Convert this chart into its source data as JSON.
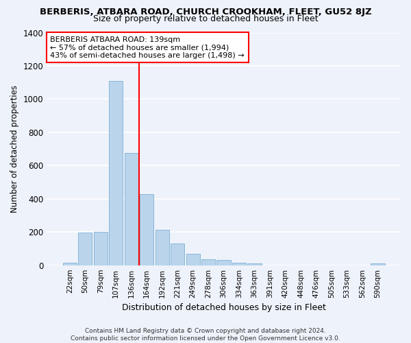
{
  "title": "BERBERIS, ATBARA ROAD, CHURCH CROOKHAM, FLEET, GU52 8JZ",
  "subtitle": "Size of property relative to detached houses in Fleet",
  "xlabel": "Distribution of detached houses by size in Fleet",
  "ylabel": "Number of detached properties",
  "categories": [
    "22sqm",
    "50sqm",
    "79sqm",
    "107sqm",
    "136sqm",
    "164sqm",
    "192sqm",
    "221sqm",
    "249sqm",
    "278sqm",
    "306sqm",
    "334sqm",
    "363sqm",
    "391sqm",
    "420sqm",
    "448sqm",
    "476sqm",
    "505sqm",
    "533sqm",
    "562sqm",
    "590sqm"
  ],
  "values": [
    15,
    195,
    200,
    1110,
    675,
    430,
    215,
    130,
    70,
    35,
    30,
    15,
    10,
    0,
    0,
    0,
    0,
    0,
    0,
    0,
    10
  ],
  "bar_color": "#bad4ec",
  "bar_edgecolor": "#7aafd4",
  "annotation_line1": "BERBERIS ATBARA ROAD: 139sqm",
  "annotation_line2": "← 57% of detached houses are smaller (1,994)",
  "annotation_line3": "43% of semi-detached houses are larger (1,498) →",
  "ylim_max": 1400,
  "yticks": [
    0,
    200,
    400,
    600,
    800,
    1000,
    1200,
    1400
  ],
  "property_line_x": 4.5,
  "background_color": "#eef2fa",
  "grid_color": "#ffffff",
  "footer_line1": "Contains HM Land Registry data © Crown copyright and database right 2024.",
  "footer_line2": "Contains public sector information licensed under the Open Government Licence v3.0."
}
